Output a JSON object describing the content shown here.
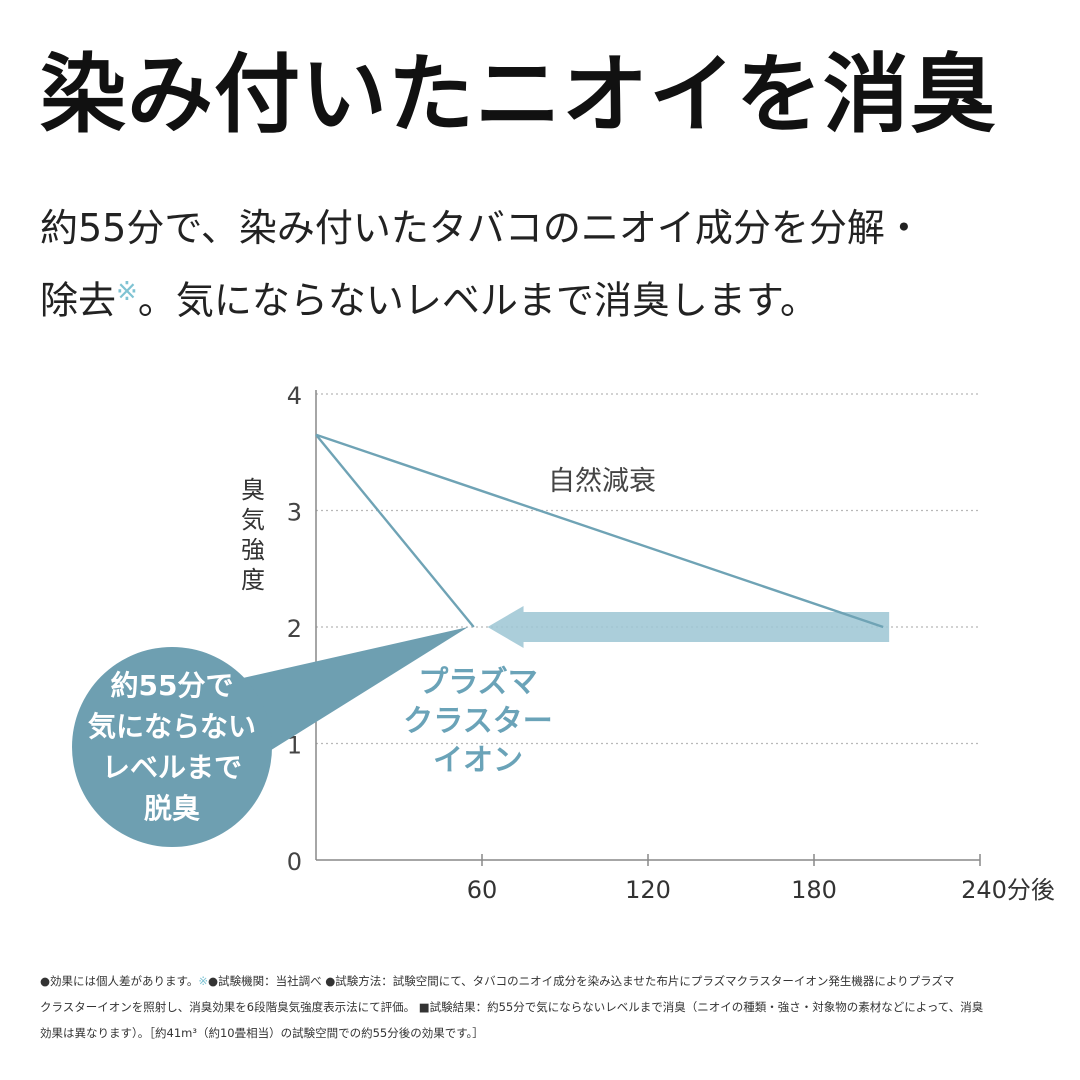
{
  "headline": "染み付いたニオイを消臭",
  "subtitle": {
    "line1": "約55分で、染み付いたタバコのニオイ成分を分解・",
    "line2_a": "除去",
    "line2_mark": "※",
    "line2_b": "。気にならないレベルまで消臭します。"
  },
  "chart_data": {
    "type": "line",
    "ylabel": "臭気強度",
    "x_ticks": [
      "",
      "60",
      "120",
      "180",
      "240分後"
    ],
    "x_tick_values": [
      0,
      60,
      120,
      180,
      240
    ],
    "y_ticks": [
      "0",
      "1",
      "2",
      "3",
      "4"
    ],
    "y_tick_values": [
      0,
      1,
      2,
      3,
      4
    ],
    "xlim": [
      0,
      240
    ],
    "ylim": [
      0,
      4
    ],
    "grid": "horizontal-dotted",
    "series": [
      {
        "name": "自然減衰",
        "x": [
          0,
          205
        ],
        "y": [
          3.65,
          2.0
        ],
        "color": "#6fa3b5"
      },
      {
        "name": "プラズマクラスターイオン",
        "x": [
          0,
          57
        ],
        "y": [
          3.65,
          2.0
        ],
        "color": "#6fa3b5"
      }
    ],
    "arrow": {
      "x_from": 205,
      "x_to": 62,
      "y": 2.0,
      "color": "#9cc6d3"
    },
    "callout": {
      "lines": [
        "約55分で",
        "気にならない",
        "レベルまで",
        "脱臭"
      ],
      "pointer_x": 55,
      "pointer_y": 2.0,
      "color": "#6e9fb1"
    },
    "series_label_lines": [
      "プラズマ",
      "クラスター",
      "イオン"
    ],
    "series_label_color": "#6aa3b8"
  },
  "footnote": {
    "line1_a": "●効果には個人差があります。",
    "line1_mark": "※",
    "line1_b": "●試験機関：当社調べ ●試験方法：試験空間にて、タバコのニオイ成分を染み込ませた布片にプラズマクラスターイオン発生機器によりプラズマ",
    "line2": "クラスターイオンを照射し、消臭効果を6段階臭気強度表示法にて評価。 ■試験結果：約55分で気にならないレベルまで消臭（ニオイの種類・強さ・対象物の素材などによって、消臭",
    "line3": "効果は異なります）。［約41m³（約10畳相当）の試験空間での約55分後の効果です。］"
  }
}
